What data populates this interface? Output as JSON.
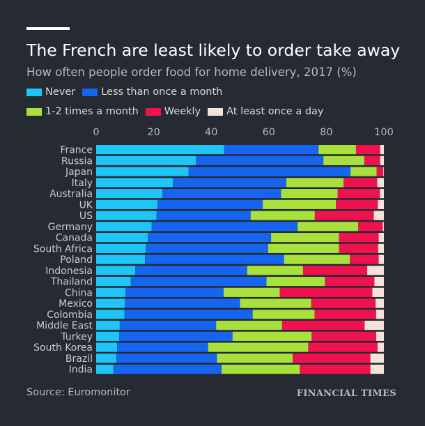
{
  "title": "The French are least likely to order take away",
  "subtitle": "How often people order food for home delivery, 2017 (%)",
  "source": "Source: Euromonitor",
  "brand": "FINANCIAL TIMES",
  "legend": [
    {
      "label": "Never",
      "color": "#1fc5f4"
    },
    {
      "label": "Less than once a month",
      "color": "#1565f0"
    },
    {
      "label": "1-2 times a month",
      "color": "#a8e03c"
    },
    {
      "label": "Weekly",
      "color": "#f0114f"
    },
    {
      "label": "At least once a day",
      "color": "#f5e3db"
    }
  ],
  "chart_data": {
    "type": "bar",
    "orientation": "horizontal",
    "stacked": true,
    "xlim": [
      0,
      100
    ],
    "xticks": [
      0,
      20,
      40,
      60,
      80,
      100
    ],
    "axis_position": "top",
    "grid": false,
    "legend_position": "top",
    "categories": [
      "France",
      "Russia",
      "Japan",
      "Italy",
      "Australia",
      "UK",
      "US",
      "Germany",
      "Canada",
      "South Africa",
      "Poland",
      "Indonesia",
      "Thailand",
      "China",
      "Mexico",
      "Colombia",
      "Middle East",
      "Turkey",
      "South Korea",
      "Brazil",
      "India"
    ],
    "series": [
      {
        "name": "Never",
        "color": "#1fc5f4",
        "values": [
          44.5,
          34.7,
          32.1,
          26.7,
          23.0,
          21.3,
          21.0,
          19.3,
          18.0,
          17.2,
          17.0,
          13.6,
          12.0,
          10.2,
          10.0,
          9.8,
          8.2,
          8.0,
          7.3,
          7.0,
          6.0
        ]
      },
      {
        "name": "Less than once a month",
        "color": "#1565f0",
        "values": [
          32.8,
          44.3,
          56.3,
          39.4,
          41.3,
          36.6,
          32.7,
          50.7,
          42.8,
          42.6,
          48.3,
          38.9,
          47.2,
          34.1,
          40.0,
          44.6,
          33.5,
          39.4,
          31.6,
          35.0,
          37.6
        ]
      },
      {
        "name": "1-2 times a month",
        "color": "#a8e03c",
        "values": [
          13.0,
          14.2,
          9.1,
          19.9,
          19.6,
          25.4,
          22.3,
          21.1,
          23.6,
          24.6,
          22.9,
          19.4,
          20.3,
          19.5,
          24.7,
          21.5,
          22.9,
          27.5,
          34.8,
          26.3,
          27.2
        ]
      },
      {
        "name": "Weekly",
        "color": "#f0114f",
        "values": [
          8.4,
          5.5,
          2.3,
          11.7,
          14.7,
          14.6,
          20.5,
          8.5,
          13.8,
          13.6,
          10.0,
          22.3,
          17.2,
          32.2,
          22.4,
          21.4,
          28.7,
          22.4,
          24.1,
          27.0,
          24.5
        ]
      },
      {
        "name": "At least once a day",
        "color": "#f5e3db",
        "values": [
          1.3,
          1.3,
          0.2,
          2.3,
          1.4,
          2.1,
          3.5,
          0.4,
          1.8,
          2.0,
          1.8,
          5.8,
          3.3,
          4.0,
          2.9,
          2.7,
          6.7,
          2.7,
          2.2,
          4.7,
          4.7
        ]
      }
    ]
  }
}
